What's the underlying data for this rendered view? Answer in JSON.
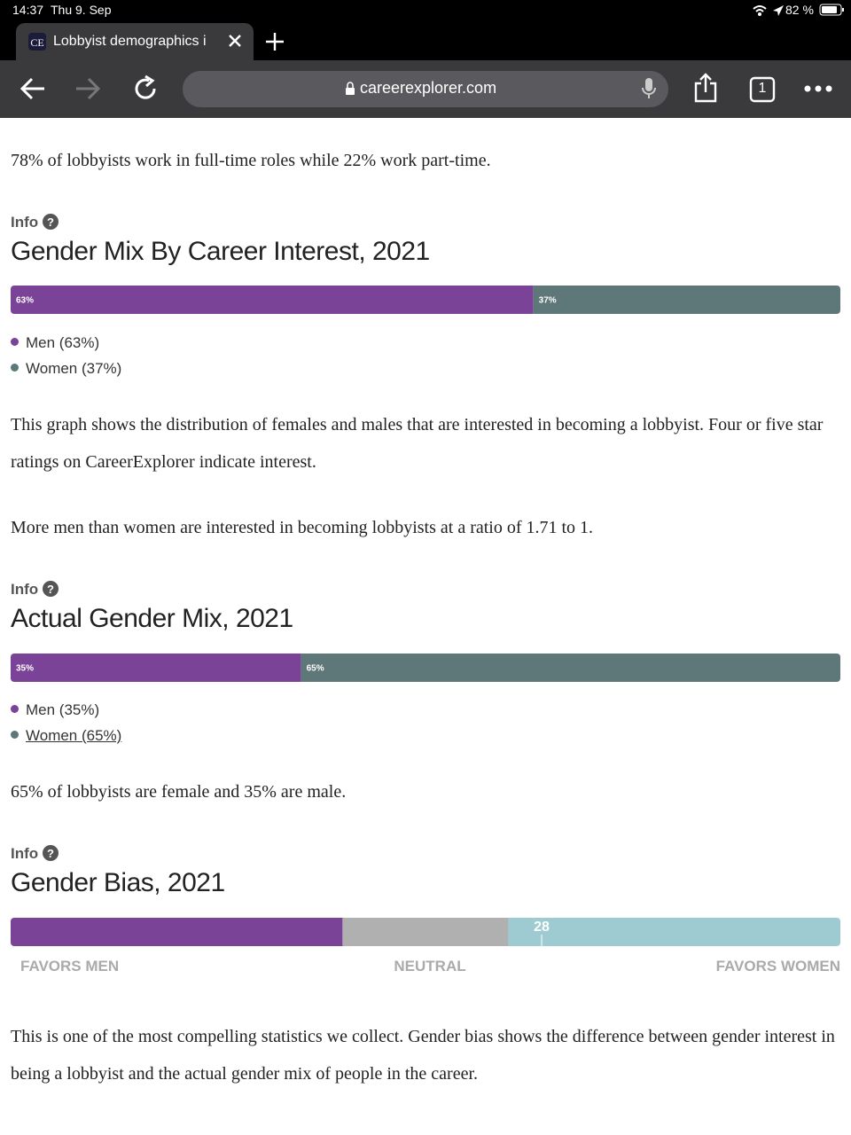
{
  "status_bar": {
    "time": "14:37",
    "date": "Thu 9. Sep",
    "battery": "82 %"
  },
  "browser": {
    "tab_title": "Lobbyist demographics i",
    "url": "careerexplorer.com",
    "tab_count": "1"
  },
  "content": {
    "intro": "78% of lobbyists work in full-time roles while 22% work part-time.",
    "interest": {
      "info": "Info",
      "title": "Gender Mix By Career Interest, 2021",
      "chart": {
        "type": "stacked-bar",
        "xlim": [
          0,
          100
        ],
        "values": [
          63,
          37
        ],
        "value_labels": [
          "63%",
          "37%"
        ],
        "colors": [
          "#7b4397",
          "#5e7879"
        ]
      },
      "legend": [
        "Men (63%)",
        "Women (37%)"
      ],
      "paragraphs": [
        "This graph shows the distribution of females and males that are interested in becoming a lobbyist. Four or five star ratings on CareerExplorer indicate interest.",
        "More men than women are interested in becoming lobbyists at a ratio of 1.71 to 1."
      ]
    },
    "actual": {
      "info": "Info",
      "title": "Actual Gender Mix, 2021",
      "chart": {
        "type": "stacked-bar",
        "xlim": [
          0,
          100
        ],
        "values": [
          35,
          65
        ],
        "value_labels": [
          "35%",
          "65%"
        ],
        "colors": [
          "#7b4397",
          "#5e7879"
        ]
      },
      "legend": [
        "Men (35%)",
        "Women (65%)"
      ],
      "paragraphs": [
        "65% of lobbyists are female and 35% are male."
      ]
    },
    "bias": {
      "info": "Info",
      "title": "Gender Bias, 2021",
      "chart": {
        "type": "gauge-bar",
        "xlim": [
          -100,
          100
        ],
        "band_edges": [
          -100,
          -20,
          20,
          100
        ],
        "band_colors": [
          "#7b4397",
          "#b0b0b0",
          "#9ecbd2"
        ],
        "value": 28
      },
      "scale_labels": [
        "FAVORS MEN",
        "NEUTRAL",
        "FAVORS WOMEN"
      ],
      "paragraphs": [
        "This is one of the most compelling statistics we collect. Gender bias shows the difference between gender interest in being a lobbyist and the actual gender mix of people in the career."
      ]
    }
  }
}
